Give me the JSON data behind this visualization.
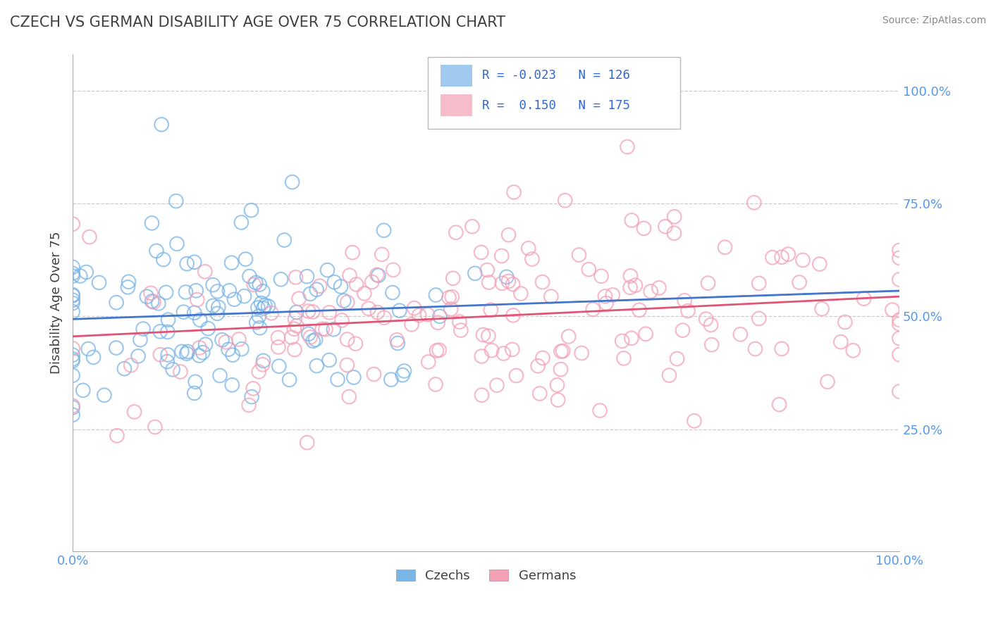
{
  "title": "CZECH VS GERMAN DISABILITY AGE OVER 75 CORRELATION CHART",
  "source": "Source: ZipAtlas.com",
  "ylabel": "Disability Age Over 75",
  "xlim": [
    0.0,
    1.0
  ],
  "ylim": [
    0.0,
    1.05
  ],
  "yticks": [
    0.0,
    0.25,
    0.5,
    0.75,
    1.0
  ],
  "ytick_labels": [
    "",
    "25.0%",
    "50.0%",
    "75.0%",
    "100.0%"
  ],
  "czech_color": "#7ab5e8",
  "german_color": "#f4a0b5",
  "czech_R": -0.023,
  "czech_N": 126,
  "german_R": 0.15,
  "german_N": 175,
  "czech_line_color": "#4477cc",
  "german_line_color": "#e05575",
  "background_color": "#ffffff",
  "grid_color": "#cccccc",
  "title_color": "#404040",
  "legend_label_1": "Czechs",
  "legend_label_2": "Germans"
}
